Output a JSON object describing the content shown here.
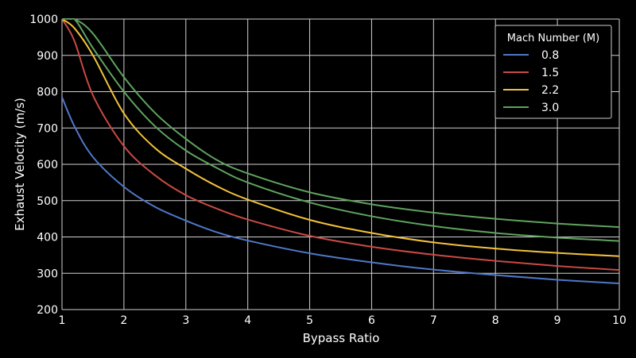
{
  "chart_data": {
    "type": "line",
    "title": "",
    "xlabel": "Bypass Ratio",
    "ylabel": "Exhaust Velocity (m/s)",
    "xlim": [
      1,
      10
    ],
    "ylim": [
      200,
      1000
    ],
    "xticks": [
      1,
      2,
      3,
      4,
      5,
      6,
      7,
      8,
      9,
      10
    ],
    "yticks": [
      200,
      300,
      400,
      500,
      600,
      700,
      800,
      900,
      1000
    ],
    "grid": true,
    "legend": {
      "title": "Mach Number (M)",
      "position": "top-right"
    },
    "x": [
      1,
      1.2,
      1.5,
      2,
      2.5,
      3,
      3.5,
      4,
      5,
      6,
      7,
      8,
      9,
      10
    ],
    "series": [
      {
        "name": "0.8",
        "color": "#4f78c8",
        "values": [
          785,
          705,
          620,
          538,
          483,
          445,
          413,
          390,
          355,
          330,
          310,
          295,
          282,
          272
        ]
      },
      {
        "name": "1.5",
        "color": "#c94a44",
        "values": [
          1000,
          940,
          790,
          650,
          570,
          515,
          478,
          448,
          403,
          373,
          351,
          334,
          320,
          309
        ]
      },
      {
        "name": "2.2",
        "color": "#f2c23c",
        "values": [
          1000,
          975,
          900,
          740,
          645,
          588,
          540,
          503,
          447,
          411,
          385,
          368,
          356,
          347
        ]
      },
      {
        "name": "3.0a",
        "label": "3.0",
        "color": "#5fa35f",
        "values": [
          1000,
          1000,
          960,
          840,
          742,
          670,
          612,
          575,
          523,
          490,
          467,
          450,
          437,
          427
        ]
      },
      {
        "name": "3.0b",
        "label": "",
        "color": "#5fa35f",
        "values": [
          1000,
          1000,
          920,
          800,
          705,
          638,
          590,
          550,
          495,
          457,
          430,
          411,
          398,
          389
        ]
      }
    ]
  }
}
